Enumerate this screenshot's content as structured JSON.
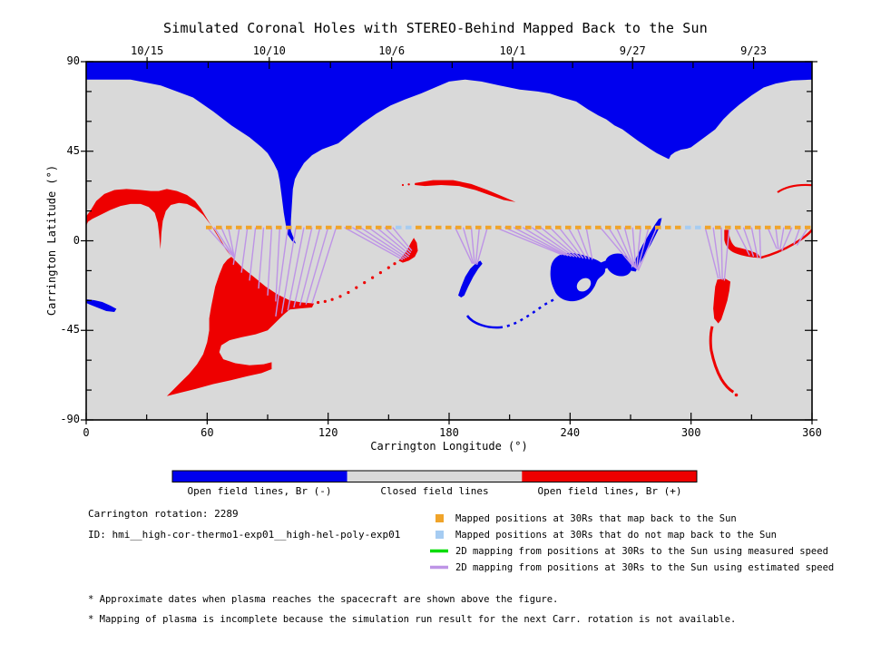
{
  "chart_data": {
    "type": "map",
    "title": "Simulated Coronal Holes with STEREO-Behind Mapped Back to the Sun",
    "xlabel": "Carrington Longitude (°)",
    "ylabel": "Carrington Latitude (°)",
    "xlim": [
      0,
      360
    ],
    "ylim": [
      -90,
      90
    ],
    "x_ticks": [
      0,
      60,
      120,
      180,
      240,
      300,
      360
    ],
    "y_ticks": [
      90,
      45,
      0,
      -45,
      -90
    ],
    "top_axis": {
      "description": "Approximate dates when plasma reaches the spacecraft",
      "dates": [
        "10/15",
        "10/10",
        "10/6",
        "10/1",
        "9/27",
        "9/23"
      ],
      "date_longitudes": [
        30.2,
        90.8,
        151.5,
        211.5,
        271.0,
        331.0
      ]
    },
    "colorbar": {
      "segments": [
        {
          "label": "Open field lines, Br (-)",
          "color_key": "blue"
        },
        {
          "label": "Closed field lines",
          "color_key": "grey"
        },
        {
          "label": "Open field lines, Br (+)",
          "color_key": "red"
        }
      ]
    },
    "regions_summary": [
      {
        "name": "north-polar-coronal-hole",
        "polarity": "Br-",
        "extent": "lat +41 to +90, all longitudes, funnel extension down to lat 0 near longitude 100"
      },
      {
        "name": "left-positive-hole",
        "polarity": "Br+",
        "extent": "longitude 0-72, lat +26 to -8, two lobes with spike at longitude 37"
      },
      {
        "name": "south-positive-hole",
        "polarity": "Br+",
        "extent": "longitude 38-124, lat -8 to -78, C-shaped with arm to triangle at longitude 162"
      },
      {
        "name": "mid-crescent",
        "polarity": "Br+",
        "extent": "longitude 163-213, lat +19 to +31"
      },
      {
        "name": "south-negative-group",
        "polarity": "Br-",
        "extent": "longitude 184-287, lat +11 to -44, lobed body with hole and smile arc"
      },
      {
        "name": "right-positive-group",
        "polarity": "Br+",
        "extent": "longitude 307-360, lat +6 to -77, wing and descending filament"
      },
      {
        "name": "small-left-negative",
        "polarity": "Br-",
        "extent": "longitude 0-15, lat -29 to -37"
      }
    ],
    "mapped_line": {
      "lat": 6.7,
      "start_long": 59.4,
      "step_long": 4.95,
      "count": 61,
      "dash_long_width": 2.93,
      "no_map_center_ranges": [
        [
          153,
          161
        ],
        [
          297.5,
          307.5
        ]
      ]
    },
    "fans": [
      {
        "origins": [
          60,
          63.5,
          67,
          70.5
        ],
        "dests": [
          [
            73.5,
            -8.5
          ],
          [
            73.5,
            -8.5
          ],
          [
            73.5,
            -8.5
          ],
          [
            73.5,
            -8.5
          ]
        ]
      },
      {
        "origins": [
          76,
          80,
          84,
          88,
          92,
          96
        ],
        "dests": [
          [
            73,
            -12
          ],
          [
            77,
            -16
          ],
          [
            81,
            -20
          ],
          [
            85.5,
            -24
          ],
          [
            90,
            -27.5
          ],
          [
            94,
            -30.5
          ]
        ]
      },
      {
        "origins": [
          100,
          104,
          108,
          112,
          116,
          120,
          124
        ],
        "dests": [
          [
            94,
            -38
          ],
          [
            97,
            -36.5
          ],
          [
            100,
            -35
          ],
          [
            103,
            -33.5
          ],
          [
            106,
            -32.5
          ],
          [
            109,
            -32
          ],
          [
            112,
            -31.5
          ]
        ]
      },
      {
        "origins": [
          128,
          132,
          136,
          140,
          144,
          148,
          152
        ],
        "dests": [
          [
            157,
            -9.5
          ],
          [
            158,
            -9
          ],
          [
            159,
            -8.5
          ],
          [
            160,
            -8
          ],
          [
            160.5,
            -7
          ],
          [
            161,
            -6
          ],
          [
            161.5,
            -5
          ]
        ]
      },
      {
        "origins": [
          183,
          187,
          191,
          195,
          199
        ],
        "dests": [
          [
            191.5,
            -11.5
          ],
          [
            192,
            -11.5
          ],
          [
            192.6,
            -11.6
          ],
          [
            193.2,
            -11.8
          ],
          [
            193.8,
            -12
          ]
        ]
      },
      {
        "origins": [
          203,
          207.5,
          212,
          216.5,
          221,
          225.5,
          230,
          234.5,
          239,
          243.5,
          248
        ],
        "dests": [
          [
            236,
            -7
          ],
          [
            237.5,
            -7.2
          ],
          [
            239,
            -7.5
          ],
          [
            240.5,
            -7.8
          ],
          [
            242,
            -8
          ],
          [
            243.5,
            -8.2
          ],
          [
            245,
            -8.5
          ],
          [
            246.5,
            -8.8
          ],
          [
            248,
            -9
          ],
          [
            249.5,
            -9.3
          ],
          [
            251,
            -9.5
          ]
        ]
      },
      {
        "origins": [
          255,
          259,
          263,
          267,
          271,
          275,
          279,
          283
        ],
        "dests": [
          [
            271,
            -12.5
          ],
          [
            271.4,
            -13
          ],
          [
            271.8,
            -13.3
          ],
          [
            272.2,
            -13.6
          ],
          [
            272.6,
            -14
          ],
          [
            273,
            -14.3
          ],
          [
            273.4,
            -14.6
          ],
          [
            273.8,
            -15
          ]
        ]
      },
      {
        "origins": [
          307,
          311,
          315,
          319
        ],
        "dests": [
          [
            313.5,
            -19
          ],
          [
            314.5,
            -19.3
          ],
          [
            315.5,
            -19.6
          ],
          [
            316.5,
            -20
          ]
        ]
      },
      {
        "origins": [
          322,
          326,
          330,
          334
        ],
        "dests": [
          [
            329,
            -7.3
          ],
          [
            331,
            -7.9
          ],
          [
            333,
            -8.4
          ],
          [
            334.5,
            -9
          ]
        ]
      },
      {
        "origins": [
          338,
          342,
          346,
          350
        ],
        "dests": [
          [
            342.5,
            -4
          ],
          [
            343.3,
            -4.3
          ],
          [
            344.1,
            -4.6
          ],
          [
            345,
            -5
          ]
        ]
      },
      {
        "origins": [
          354,
          358
        ],
        "dests": [
          [
            351,
            -1.8
          ],
          [
            352.5,
            -2.3
          ]
        ]
      }
    ]
  },
  "annotations": {
    "rotation": "Carrington rotation: 2289",
    "run_id": "ID: hmi__high-cor-thermo1-exp01__high-hel-poly-exp01"
  },
  "legend": {
    "items": [
      {
        "symbol": "orange-square",
        "label": "Mapped positions at 30Rs that map back to the Sun"
      },
      {
        "symbol": "lightblue-square",
        "label": "Mapped positions at 30Rs that do not map back to the Sun"
      },
      {
        "symbol": "green-line",
        "label": "2D mapping from positions at 30Rs to the Sun using measured speed"
      },
      {
        "symbol": "purple-line",
        "label": "2D mapping from positions at 30Rs to the Sun using estimated speed"
      }
    ]
  },
  "footnotes": [
    {
      "text": "* Approximate dates when plasma reaches the spacecraft are shown above the figure."
    },
    {
      "text": "* Mapping of plasma is incomplete because the simulation run result for the next Carr. rotation is not available."
    }
  ],
  "colors": {
    "open_negative": "#0000EE",
    "open_positive": "#EE0000",
    "closed": "#D9D9D9",
    "mapped": "#F0A42A",
    "not_mapped": "#A6CCF2",
    "measured_speed": "#00DC00",
    "estimated_speed": "#BE94E6",
    "axis": "#000000"
  }
}
